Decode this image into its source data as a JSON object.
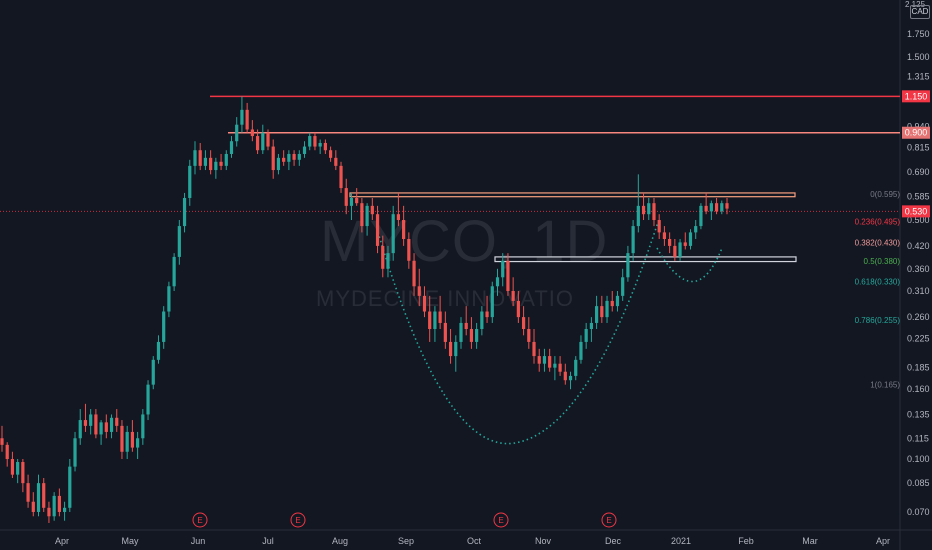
{
  "watermark": {
    "ticker": "MYCO, 1D",
    "name": "MYDECINE INNOVATIO"
  },
  "price_axis": {
    "currency": "CAD",
    "top_label": "2.125"
  },
  "chart_data": {
    "type": "candlestick",
    "title": "MYCO, 1D",
    "scale": "log",
    "ylim": [
      0.062,
      2.2
    ],
    "y_ticks": [
      "1.750",
      "1.500",
      "1.315",
      "0.940",
      "0.815",
      "0.690",
      "0.585",
      "0.500",
      "0.420",
      "0.360",
      "0.310",
      "0.260",
      "0.225",
      "0.185",
      "0.160",
      "0.135",
      "0.115",
      "0.100",
      "0.085",
      "0.070"
    ],
    "x_ticks": [
      "Apr",
      "May",
      "Jun",
      "Jul",
      "Aug",
      "Sep",
      "Oct",
      "Nov",
      "Dec",
      "2021",
      "Feb",
      "Mar",
      "Apr"
    ],
    "earnings_markers": [
      "E",
      "E",
      "E",
      "E"
    ],
    "price_tags": [
      {
        "label": "1.150",
        "value": 1.15,
        "color": "#f23645"
      },
      {
        "label": "0.900",
        "value": 0.9,
        "color": "#e57373"
      },
      {
        "label": "0.530",
        "value": 0.53,
        "color": "#f23645"
      }
    ],
    "horizontal_levels": [
      {
        "value": 1.15,
        "color": "#f23645"
      },
      {
        "value": 0.9,
        "color": "#f7877f"
      }
    ],
    "zones": [
      {
        "top": 0.6,
        "bottom": 0.585,
        "color": "#f7a07f"
      },
      {
        "top": 0.39,
        "bottom": 0.378,
        "color": "#d1d4dc"
      }
    ],
    "fibonacci": [
      {
        "label": "0(0.595)",
        "value": 0.595,
        "color": "#787b86"
      },
      {
        "label": "0.236(0.495)",
        "value": 0.495,
        "color": "#f23645"
      },
      {
        "label": "0.382(0.430)",
        "value": 0.43,
        "color": "#ef9a9a"
      },
      {
        "label": "0.5(0.380)",
        "value": 0.38,
        "color": "#4caf50"
      },
      {
        "label": "0.618(0.330)",
        "value": 0.33,
        "color": "#26a69a"
      },
      {
        "label": "0.786(0.255)",
        "value": 0.255,
        "color": "#26a69a"
      },
      {
        "label": "1(0.165)",
        "value": 0.165,
        "color": "#787b86"
      }
    ],
    "patterns": [
      {
        "name": "cup",
        "color": "#26a69a"
      },
      {
        "name": "handle",
        "color": "#26a69a"
      }
    ],
    "candles": [
      [
        0.115,
        0.125,
        0.105,
        0.11
      ],
      [
        0.11,
        0.112,
        0.095,
        0.1
      ],
      [
        0.1,
        0.105,
        0.088,
        0.09
      ],
      [
        0.09,
        0.1,
        0.085,
        0.098
      ],
      [
        0.098,
        0.1,
        0.08,
        0.085
      ],
      [
        0.085,
        0.09,
        0.072,
        0.075
      ],
      [
        0.075,
        0.08,
        0.068,
        0.07
      ],
      [
        0.07,
        0.09,
        0.068,
        0.085
      ],
      [
        0.085,
        0.088,
        0.07,
        0.072
      ],
      [
        0.072,
        0.075,
        0.065,
        0.068
      ],
      [
        0.068,
        0.08,
        0.066,
        0.078
      ],
      [
        0.078,
        0.082,
        0.068,
        0.07
      ],
      [
        0.07,
        0.075,
        0.066,
        0.072
      ],
      [
        0.072,
        0.1,
        0.07,
        0.095
      ],
      [
        0.095,
        0.12,
        0.092,
        0.115
      ],
      [
        0.115,
        0.14,
        0.11,
        0.13
      ],
      [
        0.13,
        0.145,
        0.12,
        0.125
      ],
      [
        0.125,
        0.14,
        0.118,
        0.135
      ],
      [
        0.135,
        0.14,
        0.115,
        0.118
      ],
      [
        0.118,
        0.13,
        0.11,
        0.128
      ],
      [
        0.128,
        0.135,
        0.115,
        0.12
      ],
      [
        0.12,
        0.135,
        0.115,
        0.132
      ],
      [
        0.132,
        0.14,
        0.12,
        0.125
      ],
      [
        0.125,
        0.13,
        0.1,
        0.105
      ],
      [
        0.105,
        0.125,
        0.1,
        0.12
      ],
      [
        0.12,
        0.13,
        0.105,
        0.108
      ],
      [
        0.108,
        0.12,
        0.1,
        0.115
      ],
      [
        0.115,
        0.14,
        0.11,
        0.135
      ],
      [
        0.135,
        0.17,
        0.13,
        0.165
      ],
      [
        0.165,
        0.2,
        0.16,
        0.195
      ],
      [
        0.195,
        0.23,
        0.19,
        0.22
      ],
      [
        0.22,
        0.28,
        0.21,
        0.27
      ],
      [
        0.27,
        0.33,
        0.26,
        0.32
      ],
      [
        0.32,
        0.4,
        0.31,
        0.39
      ],
      [
        0.39,
        0.5,
        0.37,
        0.48
      ],
      [
        0.48,
        0.6,
        0.46,
        0.58
      ],
      [
        0.58,
        0.75,
        0.55,
        0.72
      ],
      [
        0.72,
        0.85,
        0.68,
        0.8
      ],
      [
        0.8,
        0.84,
        0.7,
        0.72
      ],
      [
        0.72,
        0.8,
        0.7,
        0.76
      ],
      [
        0.76,
        0.8,
        0.68,
        0.7
      ],
      [
        0.7,
        0.76,
        0.66,
        0.74
      ],
      [
        0.74,
        0.78,
        0.7,
        0.72
      ],
      [
        0.72,
        0.8,
        0.7,
        0.78
      ],
      [
        0.78,
        0.88,
        0.76,
        0.85
      ],
      [
        0.85,
        1.0,
        0.82,
        0.95
      ],
      [
        0.95,
        1.15,
        0.9,
        1.05
      ],
      [
        1.05,
        1.1,
        0.9,
        0.92
      ],
      [
        0.92,
        0.98,
        0.85,
        0.88
      ],
      [
        0.88,
        0.92,
        0.78,
        0.8
      ],
      [
        0.8,
        0.95,
        0.78,
        0.9
      ],
      [
        0.9,
        0.92,
        0.8,
        0.82
      ],
      [
        0.82,
        0.86,
        0.66,
        0.7
      ],
      [
        0.7,
        0.78,
        0.68,
        0.76
      ],
      [
        0.76,
        0.8,
        0.72,
        0.74
      ],
      [
        0.74,
        0.8,
        0.7,
        0.78
      ],
      [
        0.78,
        0.8,
        0.72,
        0.75
      ],
      [
        0.75,
        0.8,
        0.72,
        0.78
      ],
      [
        0.78,
        0.85,
        0.76,
        0.82
      ],
      [
        0.82,
        0.9,
        0.8,
        0.88
      ],
      [
        0.88,
        0.9,
        0.8,
        0.82
      ],
      [
        0.82,
        0.86,
        0.78,
        0.84
      ],
      [
        0.84,
        0.86,
        0.78,
        0.8
      ],
      [
        0.8,
        0.82,
        0.74,
        0.76
      ],
      [
        0.76,
        0.8,
        0.7,
        0.72
      ],
      [
        0.72,
        0.74,
        0.6,
        0.62
      ],
      [
        0.62,
        0.66,
        0.52,
        0.55
      ],
      [
        0.55,
        0.6,
        0.5,
        0.58
      ],
      [
        0.58,
        0.62,
        0.55,
        0.56
      ],
      [
        0.56,
        0.58,
        0.46,
        0.48
      ],
      [
        0.48,
        0.56,
        0.45,
        0.55
      ],
      [
        0.55,
        0.58,
        0.5,
        0.52
      ],
      [
        0.52,
        0.55,
        0.4,
        0.42
      ],
      [
        0.42,
        0.45,
        0.34,
        0.36
      ],
      [
        0.36,
        0.42,
        0.34,
        0.4
      ],
      [
        0.4,
        0.55,
        0.38,
        0.52
      ],
      [
        0.52,
        0.6,
        0.48,
        0.5
      ],
      [
        0.5,
        0.55,
        0.42,
        0.44
      ],
      [
        0.44,
        0.46,
        0.36,
        0.38
      ],
      [
        0.38,
        0.4,
        0.3,
        0.32
      ],
      [
        0.32,
        0.36,
        0.28,
        0.3
      ],
      [
        0.3,
        0.32,
        0.26,
        0.27
      ],
      [
        0.27,
        0.3,
        0.22,
        0.24
      ],
      [
        0.24,
        0.28,
        0.22,
        0.27
      ],
      [
        0.27,
        0.3,
        0.24,
        0.25
      ],
      [
        0.25,
        0.27,
        0.21,
        0.22
      ],
      [
        0.22,
        0.24,
        0.19,
        0.2
      ],
      [
        0.2,
        0.23,
        0.18,
        0.22
      ],
      [
        0.22,
        0.26,
        0.21,
        0.25
      ],
      [
        0.25,
        0.28,
        0.23,
        0.24
      ],
      [
        0.24,
        0.26,
        0.21,
        0.22
      ],
      [
        0.22,
        0.25,
        0.21,
        0.24
      ],
      [
        0.24,
        0.28,
        0.23,
        0.27
      ],
      [
        0.27,
        0.3,
        0.25,
        0.26
      ],
      [
        0.26,
        0.33,
        0.25,
        0.32
      ],
      [
        0.32,
        0.36,
        0.3,
        0.34
      ],
      [
        0.34,
        0.4,
        0.32,
        0.38
      ],
      [
        0.38,
        0.4,
        0.3,
        0.31
      ],
      [
        0.31,
        0.34,
        0.28,
        0.29
      ],
      [
        0.29,
        0.31,
        0.25,
        0.26
      ],
      [
        0.26,
        0.28,
        0.23,
        0.24
      ],
      [
        0.24,
        0.26,
        0.21,
        0.22
      ],
      [
        0.22,
        0.24,
        0.19,
        0.2
      ],
      [
        0.2,
        0.21,
        0.18,
        0.19
      ],
      [
        0.19,
        0.21,
        0.18,
        0.2
      ],
      [
        0.2,
        0.21,
        0.18,
        0.185
      ],
      [
        0.185,
        0.2,
        0.17,
        0.19
      ],
      [
        0.19,
        0.2,
        0.175,
        0.18
      ],
      [
        0.18,
        0.19,
        0.165,
        0.17
      ],
      [
        0.17,
        0.18,
        0.16,
        0.175
      ],
      [
        0.175,
        0.2,
        0.17,
        0.195
      ],
      [
        0.195,
        0.23,
        0.19,
        0.22
      ],
      [
        0.22,
        0.25,
        0.21,
        0.24
      ],
      [
        0.24,
        0.26,
        0.22,
        0.25
      ],
      [
        0.25,
        0.3,
        0.24,
        0.28
      ],
      [
        0.28,
        0.3,
        0.25,
        0.26
      ],
      [
        0.26,
        0.3,
        0.25,
        0.29
      ],
      [
        0.29,
        0.31,
        0.27,
        0.28
      ],
      [
        0.28,
        0.31,
        0.27,
        0.3
      ],
      [
        0.3,
        0.36,
        0.29,
        0.34
      ],
      [
        0.34,
        0.42,
        0.33,
        0.4
      ],
      [
        0.4,
        0.5,
        0.38,
        0.48
      ],
      [
        0.48,
        0.68,
        0.46,
        0.55
      ],
      [
        0.55,
        0.6,
        0.5,
        0.52
      ],
      [
        0.52,
        0.58,
        0.5,
        0.56
      ],
      [
        0.56,
        0.58,
        0.48,
        0.5
      ],
      [
        0.5,
        0.52,
        0.44,
        0.46
      ],
      [
        0.46,
        0.48,
        0.42,
        0.44
      ],
      [
        0.44,
        0.46,
        0.4,
        0.42
      ],
      [
        0.42,
        0.44,
        0.38,
        0.39
      ],
      [
        0.39,
        0.44,
        0.38,
        0.43
      ],
      [
        0.43,
        0.46,
        0.41,
        0.42
      ],
      [
        0.42,
        0.47,
        0.41,
        0.46
      ],
      [
        0.46,
        0.5,
        0.44,
        0.48
      ],
      [
        0.48,
        0.56,
        0.47,
        0.55
      ],
      [
        0.55,
        0.6,
        0.52,
        0.53
      ],
      [
        0.53,
        0.57,
        0.5,
        0.56
      ],
      [
        0.56,
        0.58,
        0.52,
        0.53
      ],
      [
        0.53,
        0.57,
        0.52,
        0.56
      ],
      [
        0.56,
        0.58,
        0.52,
        0.54
      ]
    ]
  }
}
